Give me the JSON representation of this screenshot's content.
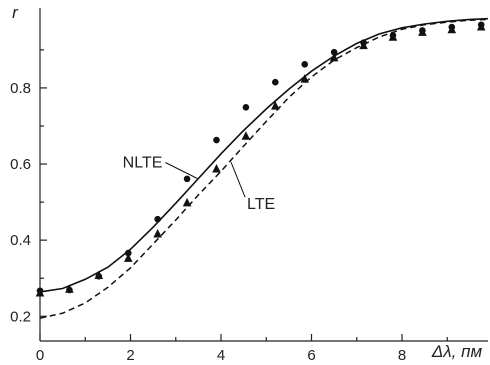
{
  "chart_data": {
    "type": "line",
    "title": "",
    "xlabel": "Δλ, пм",
    "ylabel": "r",
    "xlim": [
      0,
      9.9
    ],
    "ylim": [
      0.135,
      1.01
    ],
    "x_ticks": [
      0,
      2,
      4,
      6,
      8
    ],
    "x_tick_labels": [
      "0",
      "2",
      "4",
      "6",
      "8"
    ],
    "y_ticks": [
      0.2,
      0.4,
      0.6,
      0.8
    ],
    "y_tick_labels": [
      "0.2",
      "0.4",
      "0.6",
      "0.8"
    ],
    "grid": false,
    "legend": "none",
    "series": [
      {
        "name": "NLTE",
        "style": "solid",
        "x": [
          0,
          0.5,
          1,
          1.5,
          2,
          2.5,
          3,
          3.5,
          4,
          4.5,
          5,
          5.5,
          6,
          6.5,
          7,
          7.5,
          8,
          8.5,
          9,
          9.5,
          9.9
        ],
        "values": [
          0.264,
          0.273,
          0.297,
          0.329,
          0.376,
          0.434,
          0.497,
          0.562,
          0.627,
          0.688,
          0.745,
          0.797,
          0.844,
          0.884,
          0.917,
          0.942,
          0.958,
          0.968,
          0.975,
          0.98,
          0.982
        ]
      },
      {
        "name": "LTE",
        "style": "dashed",
        "x": [
          0,
          0.5,
          1,
          1.5,
          2,
          2.5,
          3,
          3.5,
          4,
          4.5,
          5,
          5.5,
          6,
          6.5,
          7,
          7.5,
          8,
          8.5,
          9,
          9.5,
          9.9
        ],
        "values": [
          0.195,
          0.208,
          0.235,
          0.276,
          0.327,
          0.39,
          0.453,
          0.519,
          0.581,
          0.647,
          0.712,
          0.775,
          0.829,
          0.873,
          0.906,
          0.934,
          0.954,
          0.966,
          0.973,
          0.978,
          0.98
        ]
      },
      {
        "name": "",
        "style": "circle-markers",
        "x": [
          0,
          0.65,
          1.3,
          1.95,
          2.6,
          3.25,
          3.9,
          4.55,
          5.2,
          5.85,
          6.5,
          7.15,
          7.8,
          8.45,
          9.1,
          9.75
        ],
        "values": [
          0.267,
          0.269,
          0.305,
          0.366,
          0.455,
          0.561,
          0.663,
          0.749,
          0.815,
          0.862,
          0.894,
          0.919,
          0.938,
          0.951,
          0.96,
          0.966
        ]
      },
      {
        "name": "",
        "style": "triangle-markers",
        "x": [
          0,
          0.65,
          1.3,
          1.95,
          2.6,
          3.25,
          3.9,
          4.55,
          5.2,
          5.85,
          6.5,
          7.15,
          7.8,
          8.45,
          9.1,
          9.75
        ],
        "values": [
          0.261,
          0.271,
          0.307,
          0.352,
          0.416,
          0.498,
          0.587,
          0.673,
          0.752,
          0.823,
          0.879,
          0.911,
          0.933,
          0.946,
          0.953,
          0.96
        ]
      }
    ],
    "annotations": [
      {
        "text": "NLTE",
        "points_to_series": "NLTE",
        "at_x": 3.5
      },
      {
        "text": "LTE",
        "points_to_series": "LTE",
        "at_x": 4.2
      }
    ]
  }
}
